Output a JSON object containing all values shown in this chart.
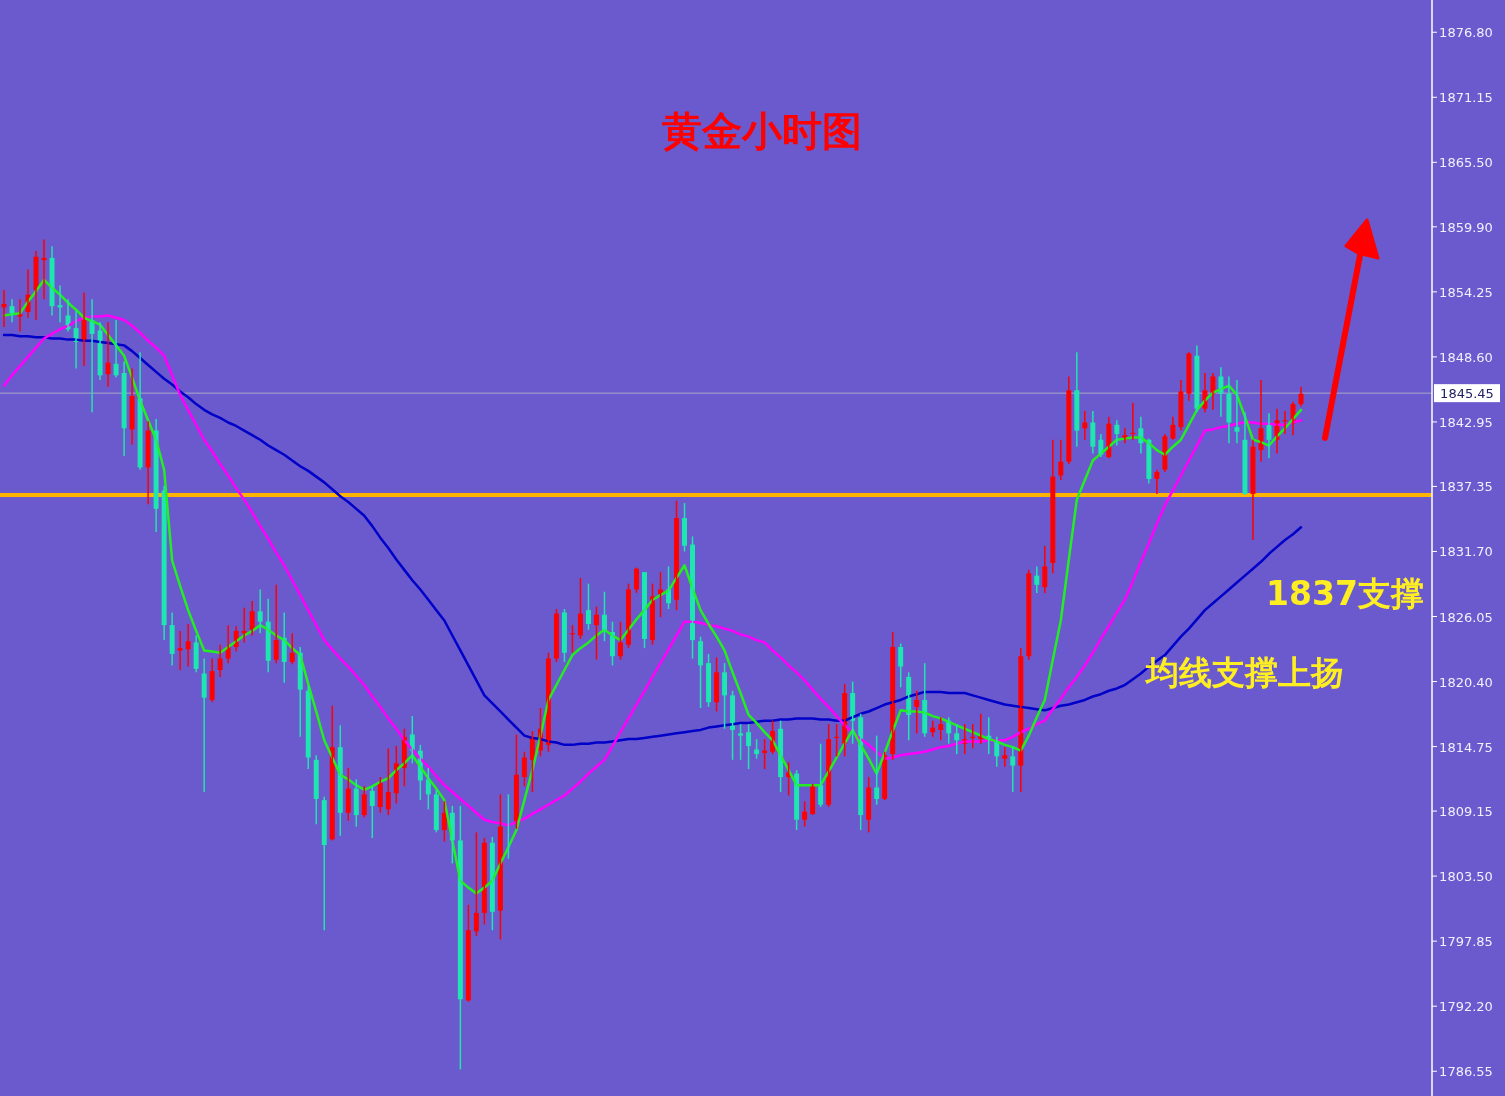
{
  "chart_data": {
    "type": "candlestick",
    "title": "黄金小时图",
    "categories": [
      null,
      null,
      null,
      null,
      null,
      null,
      null,
      null,
      null,
      null,
      null,
      null,
      null,
      null,
      null,
      null,
      null,
      null,
      null,
      null,
      null,
      null,
      null,
      null,
      null,
      null,
      null,
      null,
      null,
      null,
      null,
      null,
      null,
      null,
      null,
      null,
      null,
      null,
      null,
      null,
      null,
      null,
      null,
      null,
      null,
      null,
      null,
      null,
      null,
      null,
      null,
      null,
      null,
      null,
      null,
      null,
      null,
      null,
      null,
      null,
      null,
      null,
      null,
      null,
      null,
      null,
      null,
      null,
      null,
      null,
      null,
      null,
      null,
      null,
      null,
      null,
      null,
      null,
      null,
      null,
      null,
      null,
      null,
      null,
      null,
      null,
      null,
      null,
      null,
      null,
      null,
      null,
      null,
      null,
      null,
      null,
      null,
      null,
      null,
      null,
      null,
      null,
      null,
      null,
      null,
      null,
      null,
      null,
      null,
      null,
      null,
      null,
      null,
      null,
      null,
      null,
      null,
      null,
      null,
      null,
      null,
      null,
      null,
      null,
      null,
      null,
      null,
      null,
      null,
      null,
      null,
      null,
      null,
      null,
      null,
      null,
      null,
      null,
      null,
      null,
      null,
      null,
      null,
      null,
      null,
      null,
      null,
      null,
      null,
      null,
      null,
      null,
      null,
      null,
      null,
      null,
      null,
      null,
      null,
      null,
      null,
      null,
      null
    ],
    "ohlc": [
      [
        1852.9,
        1854.4,
        1851.2,
        1853.2
      ],
      [
        1853.0,
        1853.6,
        1851.6,
        1852.4
      ],
      [
        1852.1,
        1853.6,
        1850.8,
        1852.3
      ],
      [
        1852.5,
        1856.2,
        1852.0,
        1854.0
      ],
      [
        1854.4,
        1857.8,
        1851.8,
        1857.3
      ],
      [
        1857.0,
        1858.8,
        1853.6,
        1857.2
      ],
      [
        1857.2,
        1858.2,
        1852.2,
        1853.0
      ],
      [
        1853.1,
        1854.8,
        1851.6,
        1852.9
      ],
      [
        1852.2,
        1853.6,
        1850.8,
        1851.0
      ],
      [
        1851.1,
        1852.6,
        1847.6,
        1849.9
      ],
      [
        1850.0,
        1854.2,
        1847.8,
        1851.8
      ],
      [
        1851.8,
        1853.6,
        1843.8,
        1850.6
      ],
      [
        1850.9,
        1851.6,
        1846.6,
        1847.0
      ],
      [
        1847.1,
        1851.6,
        1846.0,
        1848.1
      ],
      [
        1848.0,
        1851.8,
        1846.8,
        1847.0
      ],
      [
        1847.2,
        1848.2,
        1840.0,
        1842.4
      ],
      [
        1842.3,
        1847.6,
        1841.0,
        1845.2
      ],
      [
        1845.0,
        1849.0,
        1838.8,
        1839.0
      ],
      [
        1839.0,
        1843.0,
        1835.8,
        1842.2
      ],
      [
        1842.2,
        1843.2,
        1833.4,
        1835.4
      ],
      [
        1837.0,
        1837.4,
        1824.0,
        1825.3
      ],
      [
        1825.3,
        1826.4,
        1821.8,
        1822.8
      ],
      [
        1823.1,
        1824.8,
        1821.4,
        1823.3
      ],
      [
        1823.2,
        1825.4,
        1821.7,
        1823.9
      ],
      [
        1823.8,
        1824.4,
        1821.2,
        1821.5
      ],
      [
        1821.1,
        1822.4,
        1810.8,
        1819.0
      ],
      [
        1818.8,
        1822.4,
        1818.6,
        1821.3
      ],
      [
        1821.4,
        1823.6,
        1820.8,
        1822.4
      ],
      [
        1822.4,
        1825.3,
        1822.0,
        1823.4
      ],
      [
        1823.4,
        1825.2,
        1823.0,
        1824.8
      ],
      [
        1824.6,
        1826.8,
        1823.8,
        1824.8
      ],
      [
        1824.9,
        1827.4,
        1824.4,
        1826.5
      ],
      [
        1826.5,
        1828.4,
        1824.6,
        1825.6
      ],
      [
        1825.6,
        1827.6,
        1821.2,
        1822.2
      ],
      [
        1822.3,
        1828.8,
        1822.0,
        1824.0
      ],
      [
        1824.2,
        1826.4,
        1820.3,
        1822.1
      ],
      [
        1822.1,
        1824.6,
        1821.9,
        1822.9
      ],
      [
        1822.9,
        1823.4,
        1815.6,
        1819.7
      ],
      [
        1819.6,
        1820.0,
        1812.8,
        1813.8
      ],
      [
        1813.6,
        1814.0,
        1808.0,
        1810.2
      ],
      [
        1810.1,
        1810.4,
        1798.8,
        1806.2
      ],
      [
        1806.7,
        1818.3,
        1806.6,
        1814.7
      ],
      [
        1814.7,
        1816.6,
        1807.0,
        1809.0
      ],
      [
        1809.0,
        1812.9,
        1808.3,
        1811.1
      ],
      [
        1811.1,
        1811.9,
        1807.8,
        1808.8
      ],
      [
        1808.8,
        1811.3,
        1808.6,
        1810.6
      ],
      [
        1810.9,
        1811.3,
        1806.8,
        1809.6
      ],
      [
        1809.5,
        1812.1,
        1809.0,
        1811.6
      ],
      [
        1809.3,
        1814.6,
        1808.8,
        1810.8
      ],
      [
        1810.7,
        1814.8,
        1809.8,
        1813.3
      ],
      [
        1812.9,
        1816.3,
        1811.3,
        1815.6
      ],
      [
        1815.8,
        1817.4,
        1813.3,
        1814.4
      ],
      [
        1814.4,
        1814.9,
        1810.1,
        1811.8
      ],
      [
        1811.9,
        1812.9,
        1809.3,
        1810.6
      ],
      [
        1810.6,
        1811.0,
        1807.3,
        1807.5
      ],
      [
        1807.5,
        1810.0,
        1806.5,
        1809.0
      ],
      [
        1809.0,
        1809.6,
        1804.6,
        1806.6
      ],
      [
        1806.6,
        1809.6,
        1786.7,
        1792.8
      ],
      [
        1792.7,
        1801.0,
        1792.6,
        1798.8
      ],
      [
        1798.7,
        1807.3,
        1798.3,
        1800.3
      ],
      [
        1800.3,
        1806.8,
        1799.3,
        1806.4
      ],
      [
        1806.4,
        1806.9,
        1798.8,
        1800.4
      ],
      [
        1800.5,
        1810.6,
        1798.0,
        1807.8
      ],
      [
        1808.0,
        1810.6,
        1805.0,
        1807.9
      ],
      [
        1808.1,
        1815.8,
        1807.6,
        1812.3
      ],
      [
        1812.1,
        1814.3,
        1811.3,
        1813.8
      ],
      [
        1813.6,
        1816.1,
        1810.8,
        1815.6
      ],
      [
        1814.4,
        1818.1,
        1813.9,
        1816.3
      ],
      [
        1814.9,
        1822.9,
        1814.3,
        1822.4
      ],
      [
        1822.4,
        1826.7,
        1822.1,
        1826.3
      ],
      [
        1826.4,
        1826.7,
        1822.1,
        1822.9
      ],
      [
        1824.5,
        1825.3,
        1822.9,
        1824.6
      ],
      [
        1824.4,
        1829.4,
        1824.1,
        1826.3
      ],
      [
        1826.6,
        1828.9,
        1824.9,
        1825.4
      ],
      [
        1825.3,
        1826.9,
        1822.3,
        1826.2
      ],
      [
        1826.2,
        1828.2,
        1823.9,
        1824.7
      ],
      [
        1824.7,
        1825.6,
        1821.8,
        1822.6
      ],
      [
        1822.6,
        1825.6,
        1822.3,
        1823.8
      ],
      [
        1823.6,
        1828.9,
        1823.3,
        1828.4
      ],
      [
        1828.4,
        1830.3,
        1828.1,
        1830.2
      ],
      [
        1829.9,
        1829.9,
        1823.3,
        1824.1
      ],
      [
        1824.0,
        1828.9,
        1823.6,
        1827.8
      ],
      [
        1828.0,
        1829.9,
        1826.0,
        1828.4
      ],
      [
        1828.4,
        1830.4,
        1826.7,
        1827.2
      ],
      [
        1827.5,
        1836.1,
        1826.6,
        1834.6
      ],
      [
        1834.6,
        1835.9,
        1831.7,
        1832.2
      ],
      [
        1832.3,
        1833.0,
        1822.4,
        1824.0
      ],
      [
        1823.9,
        1824.3,
        1818.1,
        1821.8
      ],
      [
        1822.0,
        1822.8,
        1818.2,
        1818.6
      ],
      [
        1818.6,
        1822.5,
        1817.8,
        1821.2
      ],
      [
        1821.2,
        1822.0,
        1816.3,
        1819.2
      ],
      [
        1819.2,
        1819.6,
        1813.6,
        1816.2
      ],
      [
        1815.9,
        1816.7,
        1813.6,
        1815.7
      ],
      [
        1816.0,
        1816.7,
        1812.8,
        1814.8
      ],
      [
        1814.5,
        1815.4,
        1813.7,
        1814.1
      ],
      [
        1814.2,
        1815.4,
        1812.8,
        1814.4
      ],
      [
        1814.3,
        1817.0,
        1814.1,
        1816.1
      ],
      [
        1816.3,
        1817.0,
        1810.8,
        1812.1
      ],
      [
        1812.1,
        1813.4,
        1810.5,
        1812.5
      ],
      [
        1812.4,
        1812.7,
        1807.5,
        1808.4
      ],
      [
        1808.4,
        1810.0,
        1807.8,
        1809.1
      ],
      [
        1808.9,
        1811.5,
        1808.8,
        1811.4
      ],
      [
        1811.4,
        1815.0,
        1809.5,
        1809.7
      ],
      [
        1809.7,
        1816.7,
        1809.5,
        1815.4
      ],
      [
        1815.5,
        1816.7,
        1813.9,
        1815.6
      ],
      [
        1815.0,
        1820.2,
        1813.9,
        1819.4
      ],
      [
        1819.4,
        1820.4,
        1815.0,
        1817.0
      ],
      [
        1817.3,
        1817.6,
        1807.5,
        1808.8
      ],
      [
        1808.4,
        1812.1,
        1807.3,
        1811.2
      ],
      [
        1811.2,
        1815.7,
        1809.7,
        1810.2
      ],
      [
        1810.2,
        1814.3,
        1810.1,
        1814.0
      ],
      [
        1814.1,
        1824.7,
        1813.6,
        1823.4
      ],
      [
        1823.4,
        1823.7,
        1819.9,
        1821.7
      ],
      [
        1820.8,
        1821.2,
        1815.3,
        1817.5
      ],
      [
        1818.2,
        1819.6,
        1815.9,
        1818.8
      ],
      [
        1818.8,
        1822.0,
        1815.6,
        1815.9
      ],
      [
        1816.0,
        1817.0,
        1815.6,
        1816.4
      ],
      [
        1816.2,
        1817.3,
        1815.3,
        1816.7
      ],
      [
        1817.0,
        1817.3,
        1815.0,
        1815.9
      ],
      [
        1815.9,
        1816.7,
        1814.1,
        1815.3
      ],
      [
        1815.0,
        1816.7,
        1814.1,
        1815.4
      ],
      [
        1815.5,
        1816.7,
        1814.6,
        1815.6
      ],
      [
        1815.4,
        1817.6,
        1815.0,
        1815.7
      ],
      [
        1815.7,
        1817.3,
        1814.1,
        1815.3
      ],
      [
        1815.3,
        1815.6,
        1813.0,
        1813.9
      ],
      [
        1813.7,
        1814.7,
        1813.0,
        1814.0
      ],
      [
        1813.9,
        1814.7,
        1810.8,
        1813.1
      ],
      [
        1813.1,
        1823.3,
        1810.8,
        1822.6
      ],
      [
        1822.6,
        1830.1,
        1822.3,
        1829.8
      ],
      [
        1829.6,
        1830.4,
        1828.1,
        1828.8
      ],
      [
        1828.6,
        1832.2,
        1828.1,
        1830.4
      ],
      [
        1830.7,
        1841.4,
        1829.8,
        1838.2
      ],
      [
        1838.3,
        1841.4,
        1837.9,
        1839.5
      ],
      [
        1839.5,
        1846.9,
        1839.3,
        1845.7
      ],
      [
        1845.7,
        1849.0,
        1840.8,
        1842.2
      ],
      [
        1842.4,
        1843.9,
        1841.4,
        1842.9
      ],
      [
        1842.9,
        1843.9,
        1840.2,
        1840.8
      ],
      [
        1841.4,
        1841.9,
        1839.9,
        1840.1
      ],
      [
        1839.9,
        1843.4,
        1839.8,
        1842.8
      ],
      [
        1842.7,
        1843.1,
        1840.9,
        1841.9
      ],
      [
        1841.4,
        1842.4,
        1841.1,
        1841.8
      ],
      [
        1841.9,
        1844.6,
        1841.4,
        1842.0
      ],
      [
        1842.4,
        1843.4,
        1840.2,
        1841.1
      ],
      [
        1841.4,
        1841.5,
        1837.6,
        1838.0
      ],
      [
        1838.0,
        1838.8,
        1836.7,
        1838.6
      ],
      [
        1838.8,
        1841.9,
        1838.6,
        1841.7
      ],
      [
        1841.5,
        1843.4,
        1841.4,
        1842.7
      ],
      [
        1842.5,
        1846.6,
        1842.2,
        1845.6
      ],
      [
        1845.4,
        1849.0,
        1844.8,
        1848.9
      ],
      [
        1848.7,
        1849.6,
        1843.8,
        1844.1
      ],
      [
        1844.1,
        1847.2,
        1843.8,
        1845.7
      ],
      [
        1845.4,
        1847.2,
        1844.0,
        1846.9
      ],
      [
        1846.9,
        1847.7,
        1843.4,
        1845.4
      ],
      [
        1845.4,
        1846.9,
        1841.1,
        1842.9
      ],
      [
        1842.5,
        1846.6,
        1841.1,
        1842.1
      ],
      [
        1841.4,
        1843.8,
        1836.6,
        1836.7
      ],
      [
        1836.7,
        1841.4,
        1832.7,
        1840.8
      ],
      [
        1840.5,
        1846.6,
        1839.5,
        1842.4
      ],
      [
        1842.9,
        1843.7,
        1839.8,
        1841.4
      ],
      [
        1841.4,
        1844.1,
        1840.2,
        1843.1
      ],
      [
        1843.0,
        1843.9,
        1841.9,
        1843.1
      ],
      [
        1842.8,
        1844.7,
        1841.8,
        1844.5
      ],
      [
        1844.5,
        1846.0,
        1844.3,
        1845.4
      ]
    ],
    "colors": [
      "#ff0000",
      "#1fe6b0",
      "#ff0000",
      "#ff0000",
      "#ff0000",
      "#ff0000",
      "#1fe6b0",
      "#1fe6b0",
      "#1fe6b0",
      "#1fe6b0",
      "#ff0000",
      "#1fe6b0",
      "#1fe6b0",
      "#ff0000",
      "#1fe6b0",
      "#1fe6b0",
      "#ff0000",
      "#1fe6b0",
      "#ff0000",
      "#1fe6b0",
      "#1fe6b0",
      "#1fe6b0",
      "#ff0000",
      "#ff0000",
      "#1fe6b0",
      "#1fe6b0",
      "#ff0000",
      "#ff0000",
      "#ff0000",
      "#ff0000",
      "#ff0000",
      "#ff0000",
      "#1fe6b0",
      "#1fe6b0",
      "#ff0000",
      "#1fe6b0",
      "#ff0000",
      "#1fe6b0",
      "#1fe6b0",
      "#1fe6b0",
      "#1fe6b0",
      "#ff0000",
      "#1fe6b0",
      "#ff0000",
      "#1fe6b0",
      "#ff0000",
      "#1fe6b0",
      "#ff0000",
      "#ff0000",
      "#ff0000",
      "#ff0000",
      "#1fe6b0",
      "#1fe6b0",
      "#1fe6b0",
      "#1fe6b0",
      "#ff0000",
      "#1fe6b0",
      "#1fe6b0",
      "#ff0000",
      "#ff0000",
      "#ff0000",
      "#1fe6b0",
      "#ff0000",
      "#1fe6b0",
      "#ff0000",
      "#ff0000",
      "#ff0000",
      "#ff0000",
      "#ff0000",
      "#ff0000",
      "#1fe6b0",
      "#ff0000",
      "#ff0000",
      "#1fe6b0",
      "#ff0000",
      "#1fe6b0",
      "#1fe6b0",
      "#ff0000",
      "#ff0000",
      "#ff0000",
      "#1fe6b0",
      "#ff0000",
      "#ff0000",
      "#1fe6b0",
      "#ff0000",
      "#1fe6b0",
      "#1fe6b0",
      "#1fe6b0",
      "#1fe6b0",
      "#ff0000",
      "#1fe6b0",
      "#1fe6b0",
      "#1fe6b0",
      "#1fe6b0",
      "#1fe6b0",
      "#ff0000",
      "#ff0000",
      "#1fe6b0",
      "#ff0000",
      "#1fe6b0",
      "#ff0000",
      "#ff0000",
      "#1fe6b0",
      "#ff0000",
      "#ff0000",
      "#ff0000",
      "#1fe6b0",
      "#1fe6b0",
      "#ff0000",
      "#1fe6b0",
      "#ff0000",
      "#ff0000",
      "#1fe6b0",
      "#1fe6b0",
      "#ff0000",
      "#1fe6b0",
      "#ff0000",
      "#ff0000",
      "#1fe6b0",
      "#1fe6b0",
      "#ff0000",
      "#ff0000",
      "#ff0000",
      "#1fe6b0",
      "#1fe6b0",
      "#ff0000",
      "#1fe6b0",
      "#ff0000",
      "#ff0000",
      "#1fe6b0",
      "#ff0000",
      "#ff0000",
      "#ff0000",
      "#ff0000",
      "#1fe6b0",
      "#ff0000",
      "#1fe6b0",
      "#1fe6b0",
      "#ff0000",
      "#1fe6b0",
      "#ff0000",
      "#ff0000",
      "#1fe6b0",
      "#1fe6b0",
      "#ff0000",
      "#ff0000",
      "#ff0000",
      "#ff0000",
      "#ff0000",
      "#1fe6b0",
      "#ff0000",
      "#ff0000",
      "#1fe6b0",
      "#1fe6b0",
      "#1fe6b0",
      "#1fe6b0",
      "#ff0000",
      "#ff0000",
      "#1fe6b0",
      "#ff0000",
      "#ff0000",
      "#ff0000",
      "#ff0000"
    ],
    "series": [
      {
        "type": "line",
        "color": "#0000c8",
        "values": [
          1850.5,
          1850.5,
          1850.4,
          1850.4,
          1850.3,
          1850.3,
          1850.2,
          1850.2,
          1850.1,
          1850.1,
          1850.0,
          1850.0,
          1849.9,
          1849.8,
          1849.7,
          1849.6,
          1849.1,
          1848.5,
          1847.9,
          1847.3,
          1846.7,
          1846.2,
          1845.6,
          1845.1,
          1844.5,
          1844.0,
          1843.6,
          1843.3,
          1842.9,
          1842.6,
          1842.2,
          1841.8,
          1841.4,
          1840.9,
          1840.5,
          1840.1,
          1839.6,
          1839.1,
          1838.7,
          1838.2,
          1837.7,
          1837.1,
          1836.5,
          1836.0,
          1835.4,
          1834.8,
          1833.9,
          1832.9,
          1832.0,
          1831.0,
          1830.1,
          1829.2,
          1828.4,
          1827.5,
          1826.6,
          1825.7,
          1824.4,
          1823.1,
          1821.8,
          1820.5,
          1819.2,
          1818.5,
          1817.8,
          1817.1,
          1816.4,
          1815.7,
          1815.5,
          1815.4,
          1815.2,
          1815.1,
          1814.9,
          1814.9,
          1815.0,
          1815.0,
          1815.1,
          1815.1,
          1815.2,
          1815.3,
          1815.4,
          1815.4,
          1815.5,
          1815.6,
          1815.7,
          1815.8,
          1815.9,
          1816.0,
          1816.1,
          1816.2,
          1816.4,
          1816.5,
          1816.6,
          1816.7,
          1816.8,
          1816.8,
          1816.9,
          1817.0,
          1817.0,
          1817.1,
          1817.1,
          1817.2,
          1817.2,
          1817.2,
          1817.1,
          1817.1,
          1817.0,
          1817.0,
          1817.3,
          1817.6,
          1817.8,
          1818.1,
          1818.4,
          1818.6,
          1818.8,
          1819.1,
          1819.3,
          1819.5,
          1819.5,
          1819.5,
          1819.4,
          1819.4,
          1819.4,
          1819.2,
          1819.0,
          1818.8,
          1818.6,
          1818.4,
          1818.3,
          1818.2,
          1818.1,
          1818.0,
          1817.9,
          1818.1,
          1818.3,
          1818.4,
          1818.6,
          1818.8,
          1819.1,
          1819.3,
          1819.6,
          1819.8,
          1820.1,
          1820.6,
          1821.1,
          1821.7,
          1822.2,
          1822.7,
          1823.5,
          1824.3,
          1825.0,
          1825.8,
          1826.6,
          1827.2,
          1827.8,
          1828.4,
          1829.0,
          1829.6,
          1830.2,
          1830.8,
          1831.5,
          1832.1,
          1832.7,
          1833.2,
          1833.8
        ]
      },
      {
        "type": "line",
        "color": "#ff00ff",
        "values": [
          1846.1,
          1847.0,
          1847.8,
          1848.6,
          1849.4,
          1850.2,
          1850.6,
          1851.0,
          1851.3,
          1851.7,
          1852.0,
          1852.1,
          1852.1,
          1852.2,
          1852.0,
          1851.8,
          1851.3,
          1850.7,
          1850.0,
          1849.4,
          1848.7,
          1847.0,
          1845.3,
          1844.0,
          1842.7,
          1841.4,
          1840.4,
          1839.3,
          1838.3,
          1837.2,
          1836.2,
          1835.1,
          1833.9,
          1832.8,
          1831.6,
          1830.5,
          1829.2,
          1827.9,
          1826.6,
          1825.3,
          1824.0,
          1823.2,
          1822.4,
          1821.7,
          1820.9,
          1820.1,
          1819.1,
          1818.2,
          1817.2,
          1816.3,
          1815.3,
          1814.5,
          1813.7,
          1813.0,
          1812.2,
          1811.4,
          1810.8,
          1810.2,
          1809.6,
          1809.0,
          1808.4,
          1808.2,
          1808.1,
          1807.9,
          1808.2,
          1808.5,
          1808.9,
          1809.3,
          1809.7,
          1810.1,
          1810.5,
          1811.1,
          1811.7,
          1812.4,
          1813.0,
          1813.6,
          1814.8,
          1816.0,
          1817.2,
          1818.4,
          1819.6,
          1820.8,
          1822.0,
          1823.2,
          1824.4,
          1825.6,
          1825.6,
          1825.5,
          1825.3,
          1825.2,
          1825.0,
          1824.8,
          1824.5,
          1824.3,
          1824.0,
          1823.8,
          1823.1,
          1822.5,
          1821.8,
          1821.2,
          1820.5,
          1819.7,
          1818.9,
          1818.2,
          1817.4,
          1816.6,
          1816.0,
          1815.4,
          1814.9,
          1814.3,
          1813.7,
          1813.8,
          1814.0,
          1814.1,
          1814.2,
          1814.3,
          1814.5,
          1814.7,
          1814.8,
          1815.0,
          1815.2,
          1815.2,
          1815.2,
          1815.3,
          1815.3,
          1815.3,
          1815.6,
          1816.0,
          1816.3,
          1816.7,
          1817.0,
          1818.0,
          1818.9,
          1819.9,
          1820.8,
          1821.8,
          1822.9,
          1824.1,
          1825.2,
          1826.4,
          1827.5,
          1829.1,
          1830.8,
          1832.4,
          1834.1,
          1835.7,
          1837.0,
          1838.3,
          1839.6,
          1840.9,
          1842.2,
          1842.3,
          1842.5,
          1842.6,
          1842.8,
          1842.9,
          1842.9,
          1842.8,
          1842.8,
          1842.7,
          1842.7,
          1842.9,
          1843.1
        ]
      },
      {
        "type": "line",
        "color": "#22ee22",
        "values": [
          1852.2,
          1852.3,
          1852.4,
          1853.4,
          1854.3,
          1855.3,
          1854.6,
          1854.0,
          1853.3,
          1852.7,
          1852.0,
          1851.7,
          1851.4,
          1850.5,
          1849.6,
          1848.7,
          1846.8,
          1844.8,
          1843.1,
          1841.4,
          1838.8,
          1830.9,
          1828.7,
          1826.6,
          1824.8,
          1823.1,
          1823.0,
          1822.9,
          1823.4,
          1823.9,
          1824.4,
          1824.8,
          1825.3,
          1824.9,
          1824.4,
          1824.0,
          1823.3,
          1822.7,
          1820.2,
          1817.8,
          1815.3,
          1813.8,
          1812.3,
          1811.9,
          1811.4,
          1811.0,
          1811.3,
          1811.7,
          1812.0,
          1812.7,
          1813.3,
          1814.0,
          1813.0,
          1812.0,
          1811.1,
          1810.1,
          1806.6,
          1803.1,
          1802.5,
          1802.0,
          1802.5,
          1803.1,
          1804.6,
          1806.0,
          1807.5,
          1810.1,
          1812.7,
          1815.7,
          1818.8,
          1820.1,
          1821.4,
          1822.7,
          1823.3,
          1823.8,
          1824.4,
          1824.9,
          1824.4,
          1824.0,
          1824.9,
          1825.8,
          1826.6,
          1827.5,
          1827.9,
          1828.3,
          1829.4,
          1830.5,
          1828.5,
          1826.6,
          1825.4,
          1824.3,
          1823.1,
          1821.2,
          1819.4,
          1817.5,
          1816.8,
          1816.0,
          1815.3,
          1814.0,
          1812.7,
          1811.4,
          1811.4,
          1811.4,
          1811.4,
          1812.6,
          1813.8,
          1815.0,
          1816.2,
          1814.9,
          1813.7,
          1812.4,
          1814.2,
          1816.1,
          1817.9,
          1817.8,
          1817.8,
          1817.7,
          1817.4,
          1817.2,
          1816.9,
          1816.6,
          1816.3,
          1816.0,
          1815.7,
          1815.4,
          1815.2,
          1814.9,
          1814.7,
          1814.4,
          1815.7,
          1817.3,
          1818.8,
          1822.3,
          1825.7,
          1831.0,
          1836.2,
          1837.9,
          1839.6,
          1840.2,
          1840.8,
          1841.4,
          1841.5,
          1841.6,
          1841.6,
          1841.1,
          1840.5,
          1840.1,
          1840.8,
          1841.4,
          1842.7,
          1844.0,
          1844.8,
          1845.5,
          1845.8,
          1846.1,
          1845.3,
          1843.4,
          1841.4,
          1841.2,
          1840.9,
          1841.7,
          1842.4,
          1843.2,
          1844.0
        ]
      }
    ],
    "ylim": [
      1784.4,
      1879.6
    ],
    "yticks": [
      {
        "value": 1876.8,
        "label": "1876.80"
      },
      1871.15,
      {
        "value": 1865.5,
        "label": "1865.50"
      },
      {
        "value": 1859.9,
        "label": "1859.90"
      },
      1854.25,
      {
        "value": 1848.6,
        "label": "1848.60"
      },
      1842.95,
      1837.35,
      {
        "value": 1831.7,
        "label": "1831.70"
      },
      1826.05,
      {
        "value": 1820.4,
        "label": "1820.40"
      },
      1814.75,
      1809.15,
      {
        "value": 1803.5,
        "label": "1803.50"
      },
      1797.85,
      {
        "value": 1792.2,
        "label": "1792.20"
      },
      1786.55
    ],
    "ref_lines": [
      {
        "axis": "y",
        "value": 1845.45,
        "label": "1845.45",
        "color": "#a8a8c8"
      },
      {
        "axis": "y",
        "value": 1836.6,
        "color": "#ffb400"
      }
    ],
    "annotations": [
      "1837支撑",
      "均线支撑上扬"
    ],
    "tick_labels": "y"
  }
}
